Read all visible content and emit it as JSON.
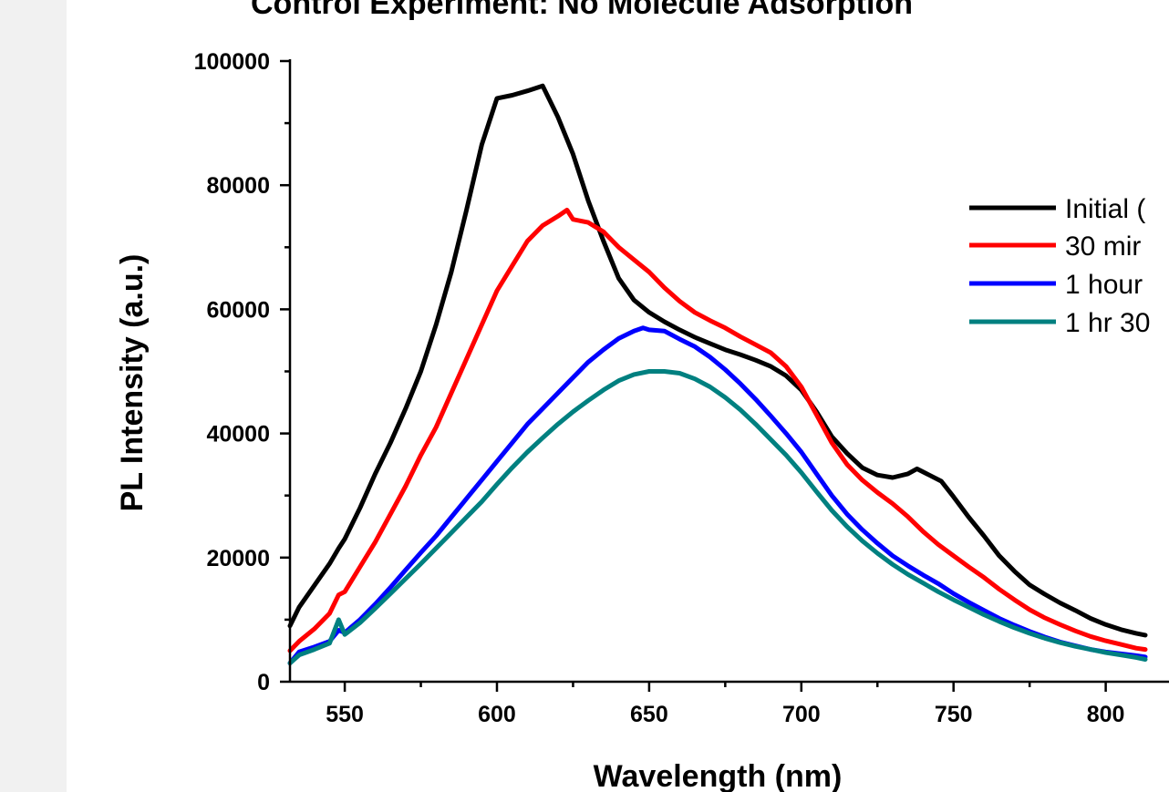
{
  "chart_data": {
    "type": "line",
    "title": "Control Experiment: No Molecule Adsorption",
    "xlabel": "Wavelength (nm)",
    "ylabel": "PL Intensity (a.u.)",
    "xlim": [
      532,
      813
    ],
    "ylim": [
      0,
      100000
    ],
    "xticks": [
      550,
      600,
      650,
      700,
      750,
      800
    ],
    "yticks": [
      0,
      20000,
      40000,
      60000,
      80000,
      100000
    ],
    "xtick_labels": [
      "550",
      "600",
      "650",
      "700",
      "750",
      "800"
    ],
    "ytick_labels": [
      "0",
      "20000",
      "40000",
      "60000",
      "80000",
      "100000"
    ],
    "grid": false,
    "legend_position": "right",
    "series": [
      {
        "name": "Initial (",
        "color": "#000000",
        "points": [
          [
            532,
            9000
          ],
          [
            535,
            12000
          ],
          [
            540,
            15500
          ],
          [
            545,
            19000
          ],
          [
            548,
            21500
          ],
          [
            550,
            23000
          ],
          [
            555,
            28000
          ],
          [
            560,
            33500
          ],
          [
            565,
            38500
          ],
          [
            570,
            44000
          ],
          [
            575,
            50000
          ],
          [
            580,
            57500
          ],
          [
            585,
            66000
          ],
          [
            590,
            76000
          ],
          [
            595,
            86500
          ],
          [
            600,
            94000
          ],
          [
            605,
            94500
          ],
          [
            610,
            95200
          ],
          [
            615,
            96000
          ],
          [
            620,
            91000
          ],
          [
            625,
            85000
          ],
          [
            630,
            77500
          ],
          [
            635,
            71000
          ],
          [
            640,
            65000
          ],
          [
            645,
            61500
          ],
          [
            650,
            59500
          ],
          [
            655,
            58000
          ],
          [
            660,
            56700
          ],
          [
            665,
            55500
          ],
          [
            670,
            54500
          ],
          [
            675,
            53500
          ],
          [
            680,
            52700
          ],
          [
            685,
            51800
          ],
          [
            690,
            50800
          ],
          [
            695,
            49300
          ],
          [
            700,
            47000
          ],
          [
            705,
            43500
          ],
          [
            710,
            39500
          ],
          [
            715,
            36800
          ],
          [
            720,
            34500
          ],
          [
            725,
            33300
          ],
          [
            730,
            32900
          ],
          [
            735,
            33500
          ],
          [
            738,
            34300
          ],
          [
            742,
            33300
          ],
          [
            746,
            32300
          ],
          [
            750,
            29800
          ],
          [
            755,
            26500
          ],
          [
            760,
            23500
          ],
          [
            765,
            20300
          ],
          [
            770,
            17800
          ],
          [
            775,
            15600
          ],
          [
            780,
            14100
          ],
          [
            785,
            12700
          ],
          [
            790,
            11500
          ],
          [
            795,
            10200
          ],
          [
            800,
            9200
          ],
          [
            805,
            8400
          ],
          [
            810,
            7800
          ],
          [
            813,
            7500
          ]
        ]
      },
      {
        "name": "30 mir",
        "color": "#ff0000",
        "points": [
          [
            532,
            5000
          ],
          [
            535,
            6500
          ],
          [
            540,
            8500
          ],
          [
            545,
            11000
          ],
          [
            548,
            14000
          ],
          [
            550,
            14500
          ],
          [
            555,
            18500
          ],
          [
            560,
            22500
          ],
          [
            565,
            27000
          ],
          [
            570,
            31500
          ],
          [
            575,
            36500
          ],
          [
            580,
            41000
          ],
          [
            585,
            46500
          ],
          [
            590,
            52000
          ],
          [
            595,
            57500
          ],
          [
            600,
            63000
          ],
          [
            605,
            67000
          ],
          [
            610,
            71000
          ],
          [
            615,
            73500
          ],
          [
            620,
            75000
          ],
          [
            623,
            76000
          ],
          [
            625,
            74500
          ],
          [
            630,
            74000
          ],
          [
            635,
            72500
          ],
          [
            640,
            70000
          ],
          [
            645,
            68000
          ],
          [
            650,
            66000
          ],
          [
            655,
            63500
          ],
          [
            660,
            61300
          ],
          [
            665,
            59500
          ],
          [
            670,
            58200
          ],
          [
            675,
            57000
          ],
          [
            680,
            55600
          ],
          [
            685,
            54300
          ],
          [
            690,
            53000
          ],
          [
            695,
            50800
          ],
          [
            700,
            47500
          ],
          [
            705,
            43000
          ],
          [
            710,
            38500
          ],
          [
            715,
            35000
          ],
          [
            720,
            32500
          ],
          [
            725,
            30500
          ],
          [
            730,
            28700
          ],
          [
            735,
            26600
          ],
          [
            740,
            24200
          ],
          [
            745,
            22100
          ],
          [
            750,
            20300
          ],
          [
            755,
            18500
          ],
          [
            760,
            16800
          ],
          [
            765,
            14900
          ],
          [
            770,
            13200
          ],
          [
            775,
            11600
          ],
          [
            780,
            10300
          ],
          [
            785,
            9200
          ],
          [
            790,
            8200
          ],
          [
            795,
            7300
          ],
          [
            800,
            6600
          ],
          [
            805,
            6000
          ],
          [
            810,
            5400
          ],
          [
            813,
            5200
          ]
        ]
      },
      {
        "name": "1 hour",
        "color": "#0000ff",
        "points": [
          [
            532,
            3000
          ],
          [
            535,
            4800
          ],
          [
            540,
            5600
          ],
          [
            545,
            6500
          ],
          [
            548,
            8300
          ],
          [
            550,
            7900
          ],
          [
            555,
            10000
          ],
          [
            560,
            12500
          ],
          [
            565,
            15200
          ],
          [
            570,
            18000
          ],
          [
            575,
            20800
          ],
          [
            580,
            23500
          ],
          [
            585,
            26500
          ],
          [
            590,
            29500
          ],
          [
            595,
            32500
          ],
          [
            600,
            35500
          ],
          [
            605,
            38500
          ],
          [
            610,
            41500
          ],
          [
            615,
            44000
          ],
          [
            620,
            46500
          ],
          [
            625,
            49000
          ],
          [
            630,
            51500
          ],
          [
            635,
            53500
          ],
          [
            640,
            55300
          ],
          [
            645,
            56500
          ],
          [
            648,
            57000
          ],
          [
            650,
            56700
          ],
          [
            655,
            56500
          ],
          [
            660,
            55200
          ],
          [
            665,
            54000
          ],
          [
            670,
            52300
          ],
          [
            675,
            50300
          ],
          [
            680,
            48000
          ],
          [
            685,
            45500
          ],
          [
            690,
            42800
          ],
          [
            695,
            40000
          ],
          [
            700,
            37000
          ],
          [
            705,
            33500
          ],
          [
            710,
            30000
          ],
          [
            715,
            27000
          ],
          [
            720,
            24500
          ],
          [
            725,
            22300
          ],
          [
            730,
            20300
          ],
          [
            735,
            18700
          ],
          [
            740,
            17200
          ],
          [
            745,
            15800
          ],
          [
            750,
            14200
          ],
          [
            755,
            12800
          ],
          [
            760,
            11500
          ],
          [
            765,
            10200
          ],
          [
            770,
            9100
          ],
          [
            775,
            8100
          ],
          [
            780,
            7200
          ],
          [
            785,
            6400
          ],
          [
            790,
            5800
          ],
          [
            795,
            5200
          ],
          [
            800,
            4800
          ],
          [
            805,
            4500
          ],
          [
            810,
            4200
          ],
          [
            813,
            4000
          ]
        ]
      },
      {
        "name": "1 hr 30",
        "color": "#008080",
        "points": [
          [
            532,
            3000
          ],
          [
            535,
            4300
          ],
          [
            540,
            5200
          ],
          [
            545,
            6200
          ],
          [
            548,
            10000
          ],
          [
            550,
            7600
          ],
          [
            555,
            9500
          ],
          [
            560,
            11800
          ],
          [
            565,
            14200
          ],
          [
            570,
            16600
          ],
          [
            575,
            19000
          ],
          [
            580,
            21500
          ],
          [
            585,
            24000
          ],
          [
            590,
            26500
          ],
          [
            595,
            29000
          ],
          [
            600,
            31800
          ],
          [
            605,
            34500
          ],
          [
            610,
            37000
          ],
          [
            615,
            39300
          ],
          [
            620,
            41500
          ],
          [
            625,
            43500
          ],
          [
            630,
            45300
          ],
          [
            635,
            47000
          ],
          [
            640,
            48500
          ],
          [
            645,
            49500
          ],
          [
            650,
            50000
          ],
          [
            655,
            50000
          ],
          [
            660,
            49700
          ],
          [
            665,
            48800
          ],
          [
            670,
            47500
          ],
          [
            675,
            45800
          ],
          [
            680,
            43800
          ],
          [
            685,
            41500
          ],
          [
            690,
            39000
          ],
          [
            695,
            36500
          ],
          [
            700,
            33700
          ],
          [
            705,
            30600
          ],
          [
            710,
            27600
          ],
          [
            715,
            25000
          ],
          [
            720,
            22700
          ],
          [
            725,
            20700
          ],
          [
            730,
            18900
          ],
          [
            735,
            17300
          ],
          [
            740,
            15900
          ],
          [
            745,
            14500
          ],
          [
            750,
            13200
          ],
          [
            755,
            12000
          ],
          [
            760,
            10800
          ],
          [
            765,
            9700
          ],
          [
            770,
            8700
          ],
          [
            775,
            7800
          ],
          [
            780,
            7000
          ],
          [
            785,
            6300
          ],
          [
            790,
            5700
          ],
          [
            795,
            5200
          ],
          [
            800,
            4700
          ],
          [
            805,
            4300
          ],
          [
            810,
            3900
          ],
          [
            813,
            3600
          ]
        ]
      }
    ]
  }
}
